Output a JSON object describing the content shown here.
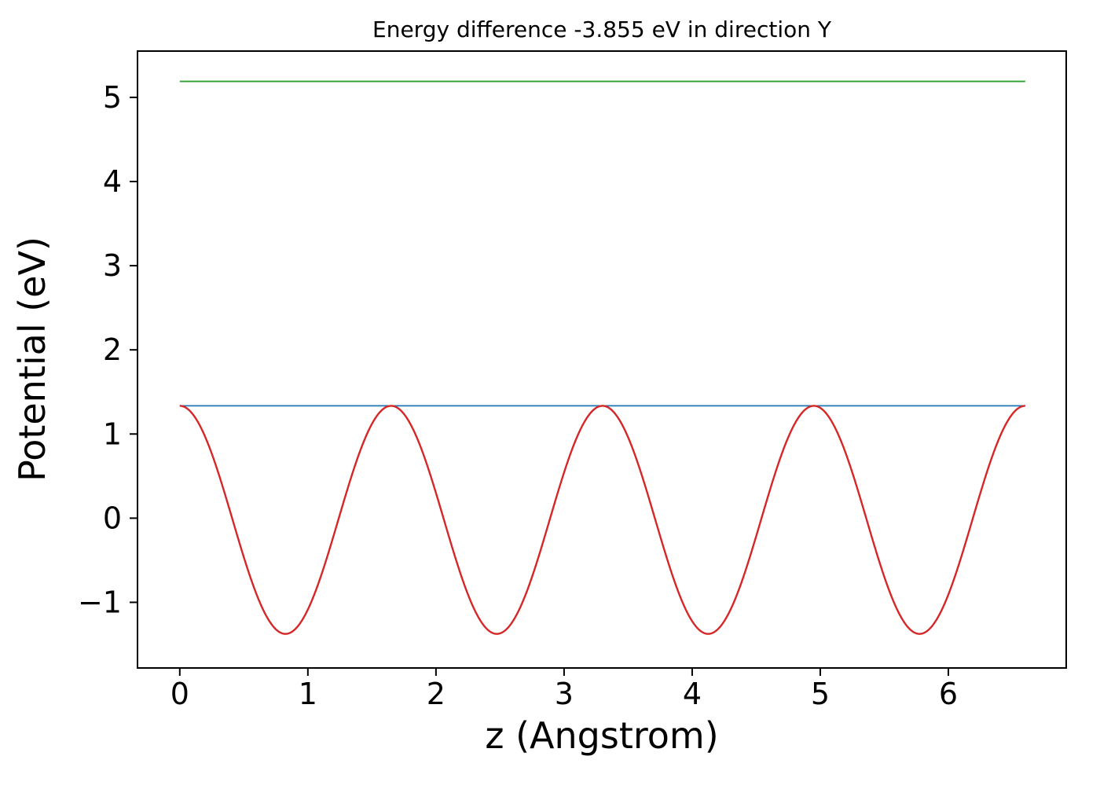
{
  "chart_data": {
    "type": "line",
    "title": "Energy difference -3.855 eV in direction Y",
    "xlabel": "z (Angstrom)",
    "ylabel": "Potential (eV)",
    "xlim": [
      -0.33,
      6.92
    ],
    "ylim": [
      -1.78,
      5.55
    ],
    "xticks": [
      0,
      1,
      2,
      3,
      4,
      5,
      6
    ],
    "yticks": [
      -1,
      0,
      1,
      2,
      3,
      4,
      5
    ],
    "grid": false,
    "legend": "none",
    "background": "#ffffff",
    "energy_difference_eV": -3.855,
    "direction": "Y",
    "series": [
      {
        "name": "vacuum-level-line",
        "type": "hline",
        "color": "#2ca02c",
        "width": 1.8,
        "y": 5.19,
        "x_start": 0.0,
        "x_end": 6.6
      },
      {
        "name": "average-potential-line",
        "type": "hline",
        "color": "#1f77b4",
        "width": 1.8,
        "y": 1.335,
        "x_start": 0.0,
        "x_end": 6.6
      },
      {
        "name": "planar-averaged-potential-curve",
        "type": "cosine",
        "color": "#d62728",
        "width": 2.4,
        "offset": -0.02,
        "amplitude": 1.355,
        "period": 1.65,
        "x_start": 0.0,
        "x_end": 6.6
      }
    ]
  }
}
